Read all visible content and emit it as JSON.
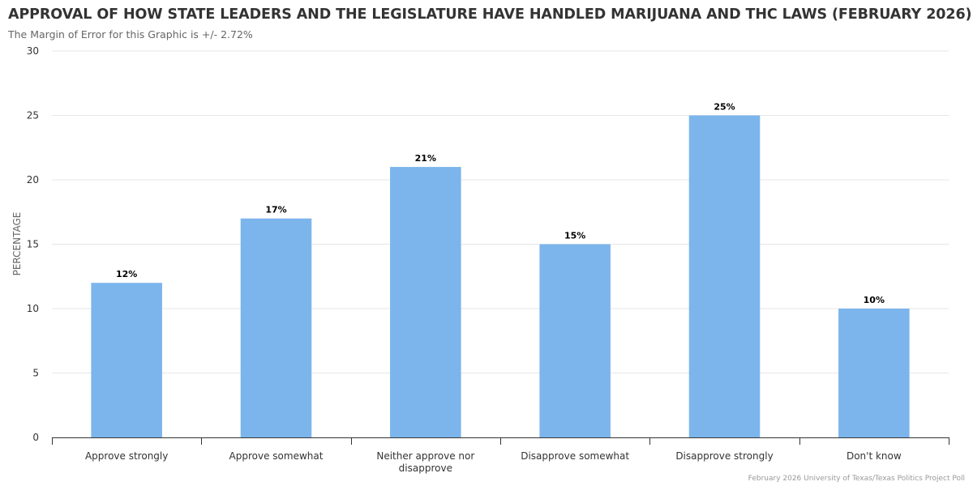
{
  "chart_data": {
    "type": "bar",
    "title": "APPROVAL OF HOW STATE LEADERS AND THE LEGISLATURE HAVE HANDLED MARIJUANA AND THC LAWS (FEBRUARY 2026)",
    "subtitle": "The Margin of Error for this Graphic is +/- 2.72%",
    "credits": "February 2026 University of Texas/Texas Politics Project Poll",
    "ylabel": "PERCENTAGE",
    "xlabel": "",
    "ylim": [
      0,
      30
    ],
    "yticks": [
      0,
      5,
      10,
      15,
      20,
      25,
      30
    ],
    "grid": true,
    "legend": "none",
    "bar_color": "#7cb5ec",
    "categories": [
      "Approve strongly",
      "Approve somewhat",
      "Neither approve nor disapprove",
      "Disapprove somewhat",
      "Disapprove strongly",
      "Don't know"
    ],
    "category_lines": [
      [
        "Approve strongly"
      ],
      [
        "Approve somewhat"
      ],
      [
        "Neither approve nor",
        "disapprove"
      ],
      [
        "Disapprove somewhat"
      ],
      [
        "Disapprove strongly"
      ],
      [
        "Don't know"
      ]
    ],
    "values": [
      12,
      17,
      21,
      15,
      25,
      10
    ],
    "data_labels": [
      "12%",
      "17%",
      "21%",
      "15%",
      "25%",
      "10%"
    ]
  }
}
